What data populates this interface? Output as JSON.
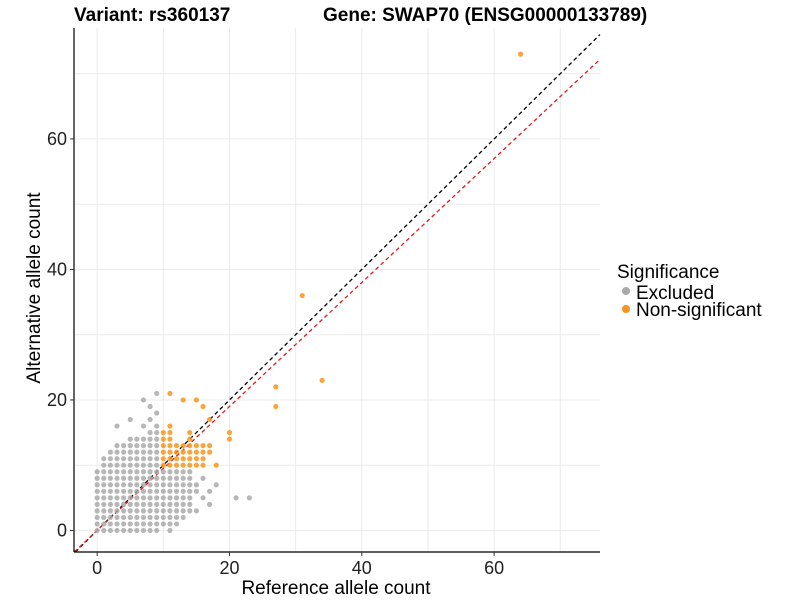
{
  "chart_data": {
    "type": "scatter",
    "title_left": "Variant: rs360137",
    "title_right": "Gene: SWAP70 (ENSG00000133789)",
    "xlabel": "Reference allele count",
    "ylabel": "Alternative allele count",
    "xlim": [
      -3.5,
      76
    ],
    "ylim": [
      -3.3,
      77
    ],
    "x_ticks": [
      0,
      20,
      40,
      60
    ],
    "y_ticks": [
      0,
      20,
      40,
      60
    ],
    "grid": true,
    "legend": {
      "title": "Significance",
      "position": "right",
      "entries": [
        {
          "label": "Excluded",
          "color": "#aaaaaa"
        },
        {
          "label": "Non-significant",
          "color": "#f7941d"
        }
      ]
    },
    "reference_lines": [
      {
        "name": "identity",
        "color": "#000000",
        "slope": 1.0,
        "intercept": 0,
        "dashed": true
      },
      {
        "name": "fit",
        "color": "#e41a1c",
        "slope": 0.95,
        "intercept": 0,
        "dashed": true
      }
    ],
    "series": [
      {
        "name": "Excluded",
        "color": "#aaaaaa",
        "points": [
          [
            0,
            0
          ],
          [
            1,
            0
          ],
          [
            2,
            0
          ],
          [
            3,
            0
          ],
          [
            4,
            0
          ],
          [
            5,
            0
          ],
          [
            6,
            0
          ],
          [
            7,
            0
          ],
          [
            8,
            0
          ],
          [
            9,
            0
          ],
          [
            11,
            0
          ],
          [
            0,
            1
          ],
          [
            1,
            1
          ],
          [
            2,
            1
          ],
          [
            3,
            1
          ],
          [
            4,
            1
          ],
          [
            5,
            1
          ],
          [
            6,
            1
          ],
          [
            7,
            1
          ],
          [
            8,
            1
          ],
          [
            9,
            1
          ],
          [
            10,
            1
          ],
          [
            11,
            1
          ],
          [
            12,
            1
          ],
          [
            0,
            2
          ],
          [
            1,
            2
          ],
          [
            2,
            2
          ],
          [
            3,
            2
          ],
          [
            4,
            2
          ],
          [
            5,
            2
          ],
          [
            6,
            2
          ],
          [
            7,
            2
          ],
          [
            8,
            2
          ],
          [
            9,
            2
          ],
          [
            10,
            2
          ],
          [
            11,
            2
          ],
          [
            12,
            2
          ],
          [
            13,
            2
          ],
          [
            0,
            3
          ],
          [
            1,
            3
          ],
          [
            2,
            3
          ],
          [
            3,
            3
          ],
          [
            4,
            3
          ],
          [
            5,
            3
          ],
          [
            6,
            3
          ],
          [
            7,
            3
          ],
          [
            8,
            3
          ],
          [
            9,
            3
          ],
          [
            10,
            3
          ],
          [
            11,
            3
          ],
          [
            12,
            3
          ],
          [
            13,
            3
          ],
          [
            14,
            3
          ],
          [
            15,
            3
          ],
          [
            0,
            4
          ],
          [
            1,
            4
          ],
          [
            2,
            4
          ],
          [
            3,
            4
          ],
          [
            4,
            4
          ],
          [
            5,
            4
          ],
          [
            6,
            4
          ],
          [
            7,
            4
          ],
          [
            8,
            4
          ],
          [
            9,
            4
          ],
          [
            10,
            4
          ],
          [
            11,
            4
          ],
          [
            12,
            4
          ],
          [
            13,
            4
          ],
          [
            14,
            4
          ],
          [
            17,
            4
          ],
          [
            0,
            5
          ],
          [
            1,
            5
          ],
          [
            2,
            5
          ],
          [
            3,
            5
          ],
          [
            4,
            5
          ],
          [
            5,
            5
          ],
          [
            6,
            5
          ],
          [
            7,
            5
          ],
          [
            8,
            5
          ],
          [
            9,
            5
          ],
          [
            10,
            5
          ],
          [
            11,
            5
          ],
          [
            12,
            5
          ],
          [
            13,
            5
          ],
          [
            14,
            5
          ],
          [
            16,
            5
          ],
          [
            21,
            5
          ],
          [
            23,
            5
          ],
          [
            0,
            6
          ],
          [
            1,
            6
          ],
          [
            2,
            6
          ],
          [
            3,
            6
          ],
          [
            4,
            6
          ],
          [
            5,
            6
          ],
          [
            6,
            6
          ],
          [
            7,
            6
          ],
          [
            8,
            6
          ],
          [
            9,
            6
          ],
          [
            10,
            6
          ],
          [
            11,
            6
          ],
          [
            12,
            6
          ],
          [
            13,
            6
          ],
          [
            14,
            6
          ],
          [
            15,
            6
          ],
          [
            17,
            6
          ],
          [
            0,
            7
          ],
          [
            1,
            7
          ],
          [
            2,
            7
          ],
          [
            3,
            7
          ],
          [
            4,
            7
          ],
          [
            5,
            7
          ],
          [
            6,
            7
          ],
          [
            7,
            7
          ],
          [
            8,
            7
          ],
          [
            9,
            7
          ],
          [
            10,
            7
          ],
          [
            11,
            7
          ],
          [
            12,
            7
          ],
          [
            13,
            7
          ],
          [
            14,
            7
          ],
          [
            15,
            7
          ],
          [
            18,
            7
          ],
          [
            0,
            8
          ],
          [
            1,
            8
          ],
          [
            2,
            8
          ],
          [
            3,
            8
          ],
          [
            4,
            8
          ],
          [
            5,
            8
          ],
          [
            6,
            8
          ],
          [
            7,
            8
          ],
          [
            8,
            8
          ],
          [
            9,
            8
          ],
          [
            10,
            8
          ],
          [
            11,
            8
          ],
          [
            12,
            8
          ],
          [
            13,
            8
          ],
          [
            14,
            8
          ],
          [
            16,
            8
          ],
          [
            0,
            9
          ],
          [
            1,
            9
          ],
          [
            2,
            9
          ],
          [
            3,
            9
          ],
          [
            4,
            9
          ],
          [
            5,
            9
          ],
          [
            6,
            9
          ],
          [
            7,
            9
          ],
          [
            8,
            9
          ],
          [
            9,
            9
          ],
          [
            10,
            9
          ],
          [
            11,
            9
          ],
          [
            12,
            9
          ],
          [
            13,
            9
          ],
          [
            14,
            9
          ],
          [
            1,
            10
          ],
          [
            2,
            10
          ],
          [
            3,
            10
          ],
          [
            4,
            10
          ],
          [
            5,
            10
          ],
          [
            6,
            10
          ],
          [
            7,
            10
          ],
          [
            8,
            10
          ],
          [
            9,
            10
          ],
          [
            1,
            11
          ],
          [
            2,
            11
          ],
          [
            3,
            11
          ],
          [
            4,
            11
          ],
          [
            5,
            11
          ],
          [
            6,
            11
          ],
          [
            7,
            11
          ],
          [
            8,
            11
          ],
          [
            9,
            11
          ],
          [
            2,
            12
          ],
          [
            3,
            12
          ],
          [
            4,
            12
          ],
          [
            5,
            12
          ],
          [
            6,
            12
          ],
          [
            7,
            12
          ],
          [
            8,
            12
          ],
          [
            9,
            12
          ],
          [
            3,
            13
          ],
          [
            4,
            13
          ],
          [
            5,
            13
          ],
          [
            6,
            13
          ],
          [
            7,
            13
          ],
          [
            8,
            13
          ],
          [
            9,
            13
          ],
          [
            5,
            14
          ],
          [
            6,
            14
          ],
          [
            7,
            14
          ],
          [
            8,
            14
          ],
          [
            9,
            14
          ],
          [
            8,
            15
          ],
          [
            9,
            15
          ],
          [
            3,
            16
          ],
          [
            7,
            16
          ],
          [
            9,
            16
          ],
          [
            5,
            17
          ],
          [
            8,
            17
          ],
          [
            9,
            18
          ],
          [
            8,
            19
          ],
          [
            7,
            20
          ],
          [
            9,
            21
          ]
        ]
      },
      {
        "name": "Non-significant",
        "color": "#f7941d",
        "points": [
          [
            10,
            10
          ],
          [
            11,
            10
          ],
          [
            12,
            10
          ],
          [
            13,
            10
          ],
          [
            14,
            10
          ],
          [
            15,
            10
          ],
          [
            16,
            10
          ],
          [
            18,
            10
          ],
          [
            10,
            11
          ],
          [
            11,
            11
          ],
          [
            12,
            11
          ],
          [
            13,
            11
          ],
          [
            14,
            11
          ],
          [
            15,
            11
          ],
          [
            16,
            11
          ],
          [
            10,
            12
          ],
          [
            11,
            12
          ],
          [
            12,
            12
          ],
          [
            13,
            12
          ],
          [
            14,
            12
          ],
          [
            15,
            12
          ],
          [
            16,
            12
          ],
          [
            17,
            12
          ],
          [
            10,
            13
          ],
          [
            11,
            13
          ],
          [
            12,
            13
          ],
          [
            13,
            13
          ],
          [
            14,
            13
          ],
          [
            15,
            13
          ],
          [
            16,
            13
          ],
          [
            17,
            13
          ],
          [
            10,
            14
          ],
          [
            11,
            14
          ],
          [
            14,
            14
          ],
          [
            20,
            14
          ],
          [
            10,
            15
          ],
          [
            11,
            15
          ],
          [
            14,
            15
          ],
          [
            20,
            15
          ],
          [
            11,
            16
          ],
          [
            17,
            17
          ],
          [
            16,
            19
          ],
          [
            11,
            21
          ],
          [
            13,
            20
          ],
          [
            15,
            20
          ],
          [
            27,
            19
          ],
          [
            27,
            22
          ],
          [
            34,
            23
          ],
          [
            31,
            36
          ],
          [
            64,
            73
          ]
        ]
      }
    ]
  }
}
